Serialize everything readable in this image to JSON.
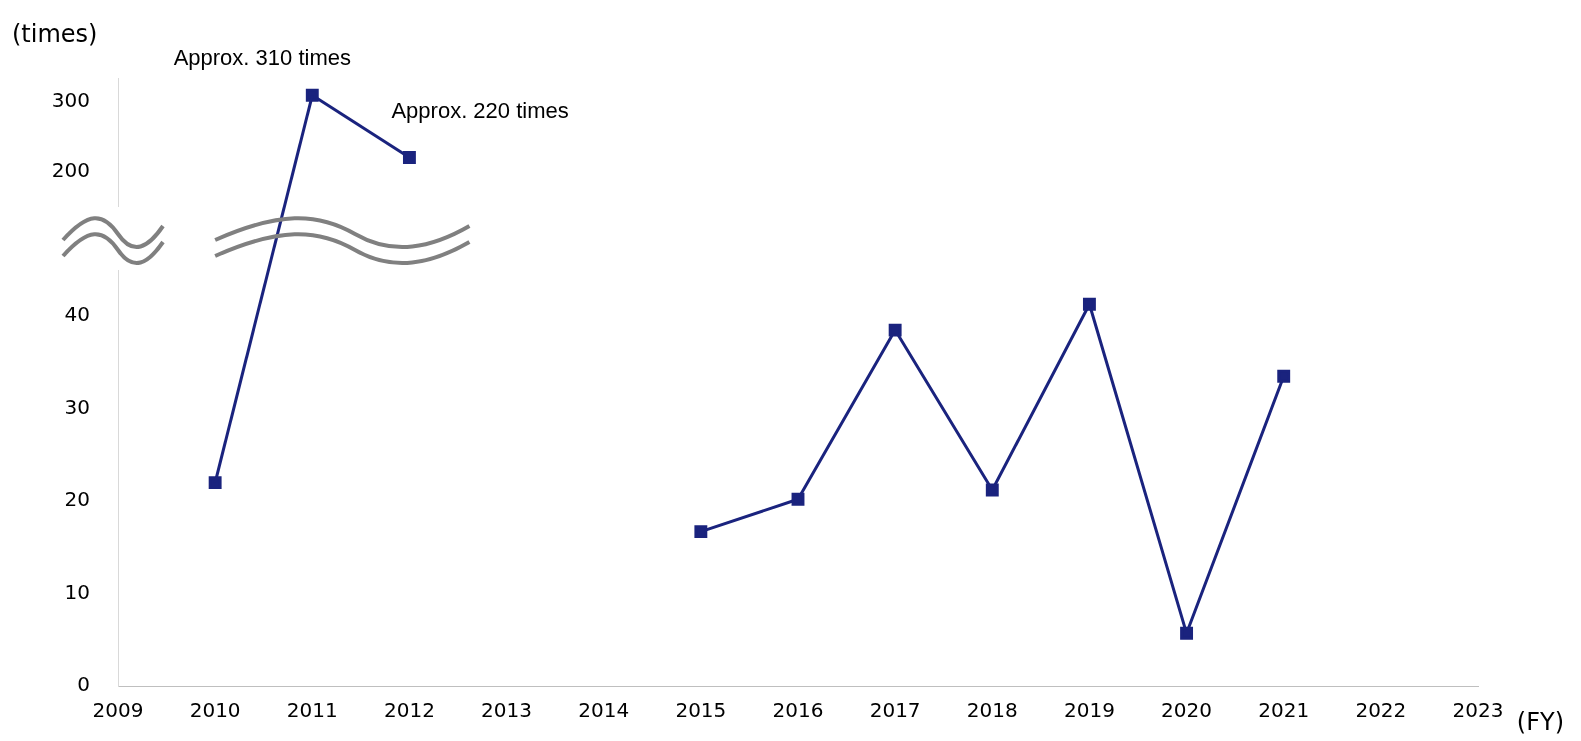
{
  "chart_data": [
    {
      "type": "line",
      "categories": [
        "2009",
        "2010",
        "2011",
        "2012",
        "2013",
        "2014",
        "2015",
        "2016",
        "2017",
        "2018",
        "2019",
        "2020",
        "2021",
        "2022",
        "2023"
      ],
      "series": [
        {
          "color": "#1a237e",
          "values": [
            null,
            null,
            310,
            220,
            null,
            null,
            null,
            null,
            null,
            null,
            null,
            null,
            null,
            null,
            null
          ]
        }
      ],
      "ylim": [
        150,
        335
      ],
      "yticks": [
        200,
        300
      ],
      "tick_labels": "y",
      "marker": "square",
      "line_style": "solid",
      "grid": false,
      "legend": false,
      "annotations": [
        "(times)",
        "Approx. 310 times",
        "Approx. 220 times"
      ]
    },
    {
      "type": "line",
      "xlabel": "(FY)",
      "categories": [
        "2009",
        "2010",
        "2011",
        "2012",
        "2013",
        "2014",
        "2015",
        "2016",
        "2017",
        "2018",
        "2019",
        "2020",
        "2021",
        "2022",
        "2023"
      ],
      "series": [
        {
          "color": "#1a237e",
          "values": [
            null,
            22,
            null,
            null,
            null,
            null,
            16.7,
            20.2,
            38.5,
            21.2,
            41.3,
            5.7,
            33.5,
            null,
            null
          ]
        }
      ],
      "ylim": [
        0,
        45
      ],
      "yticks": [
        0,
        10,
        20,
        30,
        40
      ],
      "marker": "square",
      "line_style": "solid",
      "grid": false,
      "legend": false
    }
  ]
}
